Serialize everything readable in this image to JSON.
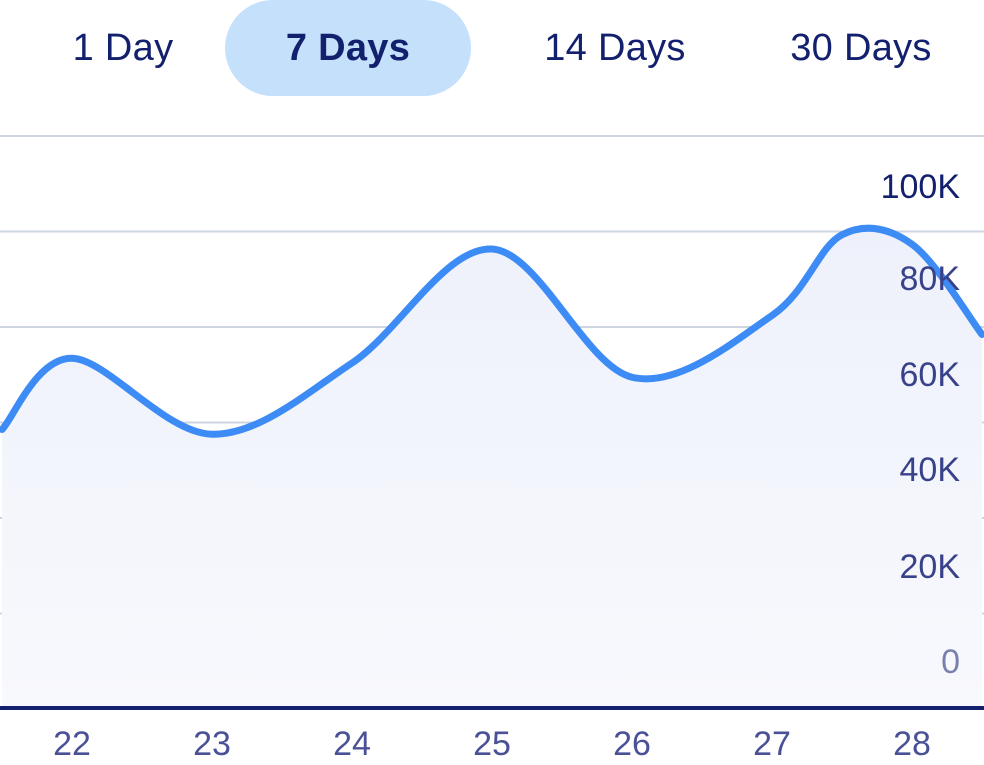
{
  "range_tabs": {
    "items": [
      {
        "label": "1 Day",
        "active": false
      },
      {
        "label": "7 Days",
        "active": true
      },
      {
        "label": "14 Days",
        "active": false
      },
      {
        "label": "30 Days",
        "active": false
      }
    ]
  },
  "colors": {
    "accent": "#3d8bf5",
    "tab_active_bg": "#c5e0fb",
    "text_dark": "#13206e",
    "gridline": "#cfd4e2",
    "baseline": "#13206e",
    "area_fill": "#eef1fb"
  },
  "chart_data": {
    "type": "area",
    "x": [
      "21.5",
      "22",
      "23",
      "24",
      "25",
      "26",
      "27",
      "27.5",
      "28",
      "28.5"
    ],
    "x_tick_labels": [
      "22",
      "23",
      "24",
      "25",
      "26",
      "27",
      "28"
    ],
    "y_tick_labels": [
      "100K",
      "80K",
      "60K",
      "40K",
      "20K",
      "0"
    ],
    "ylim": [
      0,
      110000
    ],
    "series": [
      {
        "values": [
          58000,
          73000,
          57000,
          72000,
          96000,
          69000,
          82000,
          99000,
          97000,
          78000
        ]
      }
    ],
    "grid": true,
    "smooth": true
  }
}
